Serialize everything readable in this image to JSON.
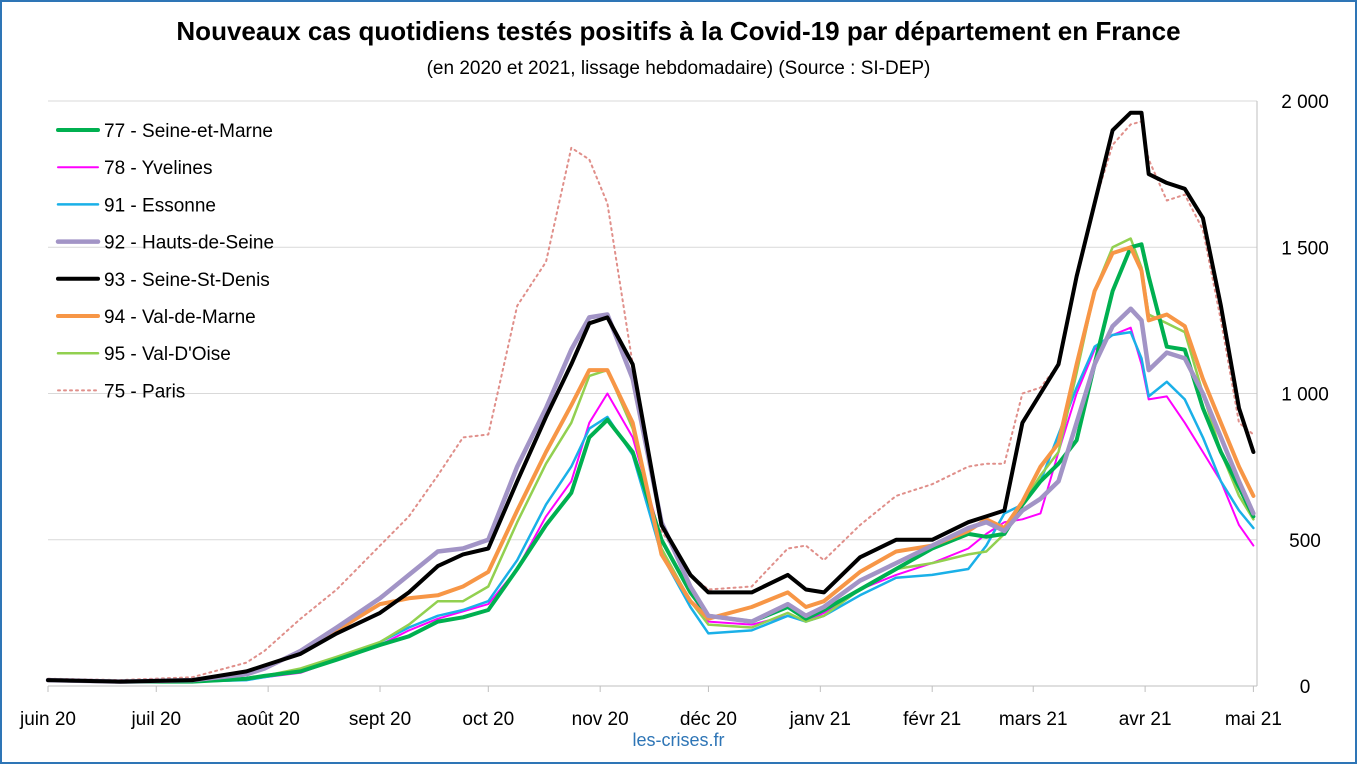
{
  "chart_data": {
    "type": "line",
    "title": "Nouveaux cas quotidiens testés positifs à la Covid-19 par département en France",
    "subtitle": "(en 2020 et 2021, lissage hebdomadaire) (Source : SI-DEP)",
    "source_credit": "les-crises.fr",
    "ylim": [
      0,
      2000
    ],
    "yticks": [
      0,
      500,
      1000,
      1500,
      2000
    ],
    "ytick_labels": [
      "0",
      "500",
      "1 000",
      "1 500",
      "2 000"
    ],
    "xlim": [
      0,
      335
    ],
    "xticks": [
      0,
      30,
      61,
      92,
      122,
      153,
      183,
      214,
      245,
      273,
      304,
      334
    ],
    "xtick_labels": [
      "juin 20",
      "juil 20",
      "août 20",
      "sept 20",
      "oct 20",
      "nov 20",
      "déc 20",
      "janv 21",
      "févr 21",
      "mars 21",
      "avr 21",
      "mai 21"
    ],
    "legend_position": "top-left",
    "grid": "horizontal",
    "series": [
      {
        "name": "77 - Seine-et-Marne",
        "color": "#00b050",
        "width": 4,
        "dash": "",
        "x": [
          0,
          20,
          40,
          55,
          60,
          70,
          80,
          92,
          100,
          108,
          115,
          122,
          130,
          138,
          145,
          150,
          155,
          162,
          170,
          178,
          183,
          195,
          205,
          210,
          215,
          225,
          235,
          245,
          255,
          260,
          265,
          270,
          275,
          280,
          285,
          290,
          295,
          300,
          303,
          305,
          310,
          315,
          320,
          325,
          330,
          334
        ],
        "y": [
          20,
          15,
          15,
          25,
          35,
          50,
          90,
          140,
          170,
          220,
          235,
          260,
          400,
          550,
          660,
          850,
          910,
          800,
          500,
          320,
          240,
          220,
          270,
          230,
          260,
          330,
          400,
          470,
          520,
          510,
          520,
          620,
          700,
          760,
          840,
          1100,
          1350,
          1500,
          1510,
          1400,
          1160,
          1150,
          950,
          800,
          680,
          580
        ]
      },
      {
        "name": "78 - Yvelines",
        "color": "#ff00ff",
        "width": 2,
        "dash": "",
        "x": [
          0,
          20,
          40,
          55,
          60,
          70,
          80,
          92,
          100,
          108,
          115,
          122,
          130,
          138,
          145,
          150,
          155,
          162,
          170,
          178,
          183,
          195,
          205,
          210,
          215,
          225,
          235,
          245,
          255,
          260,
          265,
          270,
          275,
          280,
          285,
          290,
          295,
          300,
          303,
          305,
          310,
          315,
          320,
          325,
          330,
          334
        ],
        "y": [
          20,
          15,
          15,
          20,
          30,
          45,
          90,
          140,
          190,
          230,
          255,
          280,
          400,
          580,
          700,
          900,
          1000,
          850,
          500,
          320,
          220,
          210,
          240,
          220,
          250,
          330,
          380,
          420,
          470,
          520,
          560,
          570,
          590,
          800,
          1000,
          1150,
          1200,
          1225,
          1100,
          980,
          990,
          900,
          800,
          700,
          550,
          480
        ]
      },
      {
        "name": "91 - Essonne",
        "color": "#1ab0e8",
        "width": 2.5,
        "dash": "",
        "x": [
          0,
          20,
          40,
          55,
          60,
          70,
          80,
          92,
          100,
          108,
          115,
          122,
          130,
          138,
          145,
          150,
          155,
          162,
          170,
          178,
          183,
          195,
          205,
          210,
          215,
          225,
          235,
          245,
          255,
          260,
          265,
          270,
          275,
          280,
          285,
          290,
          295,
          300,
          303,
          305,
          310,
          315,
          320,
          325,
          330,
          334
        ],
        "y": [
          20,
          15,
          15,
          20,
          30,
          50,
          90,
          150,
          200,
          240,
          260,
          290,
          430,
          620,
          750,
          880,
          920,
          790,
          450,
          270,
          180,
          190,
          240,
          220,
          240,
          310,
          370,
          380,
          400,
          480,
          590,
          620,
          700,
          860,
          1020,
          1160,
          1200,
          1210,
          1120,
          990,
          1040,
          980,
          850,
          700,
          600,
          540
        ]
      },
      {
        "name": "92 - Hauts-de-Seine",
        "color": "#a294c6",
        "width": 4.5,
        "dash": "",
        "x": [
          0,
          20,
          40,
          55,
          60,
          70,
          80,
          92,
          100,
          108,
          115,
          122,
          130,
          138,
          145,
          150,
          155,
          162,
          170,
          178,
          183,
          195,
          205,
          210,
          215,
          225,
          235,
          245,
          255,
          260,
          265,
          270,
          275,
          280,
          285,
          290,
          295,
          300,
          303,
          305,
          310,
          315,
          320,
          325,
          330,
          334
        ],
        "y": [
          20,
          15,
          20,
          40,
          60,
          120,
          200,
          300,
          380,
          460,
          470,
          500,
          750,
          950,
          1150,
          1260,
          1270,
          1050,
          560,
          340,
          240,
          220,
          280,
          240,
          270,
          360,
          420,
          480,
          540,
          560,
          530,
          600,
          640,
          700,
          900,
          1100,
          1230,
          1290,
          1250,
          1080,
          1140,
          1120,
          1000,
          850,
          700,
          590
        ]
      },
      {
        "name": "93 - Seine-St-Denis",
        "color": "#000000",
        "width": 4,
        "dash": "",
        "x": [
          0,
          20,
          40,
          55,
          60,
          70,
          80,
          92,
          100,
          108,
          115,
          122,
          130,
          138,
          145,
          150,
          155,
          162,
          170,
          178,
          183,
          195,
          205,
          210,
          215,
          225,
          235,
          245,
          255,
          260,
          265,
          270,
          275,
          280,
          285,
          290,
          295,
          300,
          303,
          305,
          310,
          315,
          320,
          325,
          330,
          334
        ],
        "y": [
          20,
          15,
          20,
          50,
          70,
          110,
          180,
          250,
          320,
          410,
          450,
          470,
          700,
          920,
          1100,
          1240,
          1260,
          1100,
          550,
          380,
          320,
          320,
          380,
          330,
          320,
          440,
          500,
          500,
          560,
          580,
          600,
          900,
          1000,
          1100,
          1400,
          1650,
          1900,
          1960,
          1960,
          1750,
          1720,
          1700,
          1600,
          1300,
          950,
          800
        ]
      },
      {
        "name": "94 - Val-de-Marne",
        "color": "#f79646",
        "width": 4,
        "dash": "",
        "x": [
          0,
          20,
          40,
          55,
          60,
          70,
          80,
          92,
          100,
          108,
          115,
          122,
          130,
          138,
          145,
          150,
          155,
          162,
          170,
          178,
          183,
          195,
          205,
          210,
          215,
          225,
          235,
          245,
          255,
          260,
          265,
          270,
          275,
          280,
          285,
          290,
          295,
          300,
          303,
          305,
          310,
          315,
          320,
          325,
          330,
          334
        ],
        "y": [
          20,
          15,
          20,
          40,
          60,
          120,
          190,
          280,
          300,
          310,
          340,
          390,
          600,
          800,
          960,
          1080,
          1080,
          900,
          450,
          290,
          230,
          270,
          320,
          270,
          290,
          390,
          460,
          480,
          530,
          570,
          540,
          630,
          750,
          830,
          1100,
          1350,
          1480,
          1500,
          1420,
          1250,
          1270,
          1230,
          1050,
          900,
          750,
          650
        ]
      },
      {
        "name": "95 - Val-D'Oise",
        "color": "#92d050",
        "width": 2.5,
        "dash": "",
        "x": [
          0,
          20,
          40,
          55,
          60,
          70,
          80,
          92,
          100,
          108,
          115,
          122,
          130,
          138,
          145,
          150,
          155,
          162,
          170,
          178,
          183,
          195,
          205,
          210,
          215,
          225,
          235,
          245,
          255,
          260,
          265,
          270,
          275,
          280,
          285,
          290,
          295,
          300,
          303,
          305,
          310,
          315,
          320,
          325,
          330,
          334
        ],
        "y": [
          20,
          15,
          15,
          25,
          35,
          60,
          100,
          150,
          210,
          290,
          290,
          340,
          560,
          760,
          900,
          1060,
          1080,
          880,
          470,
          290,
          210,
          200,
          250,
          220,
          240,
          330,
          400,
          420,
          450,
          460,
          520,
          620,
          720,
          800,
          1070,
          1350,
          1500,
          1530,
          1430,
          1270,
          1240,
          1210,
          1000,
          800,
          650,
          570
        ]
      },
      {
        "name": "75 - Paris",
        "color": "#e08f8a",
        "width": 2,
        "dash": "2 4",
        "x": [
          0,
          20,
          40,
          55,
          60,
          70,
          80,
          92,
          100,
          108,
          115,
          122,
          130,
          138,
          145,
          150,
          155,
          162,
          170,
          178,
          183,
          195,
          205,
          210,
          215,
          225,
          235,
          245,
          255,
          260,
          265,
          270,
          275,
          280,
          285,
          290,
          295,
          300,
          303,
          305,
          310,
          315,
          320,
          325,
          330,
          334
        ],
        "y": [
          25,
          20,
          30,
          80,
          120,
          230,
          330,
          480,
          580,
          720,
          850,
          860,
          1300,
          1450,
          1840,
          1800,
          1650,
          1100,
          530,
          380,
          330,
          340,
          470,
          480,
          430,
          550,
          650,
          690,
          750,
          760,
          760,
          1000,
          1020,
          1100,
          1400,
          1650,
          1850,
          1920,
          1930,
          1800,
          1660,
          1680,
          1560,
          1250,
          900,
          860
        ]
      }
    ]
  }
}
